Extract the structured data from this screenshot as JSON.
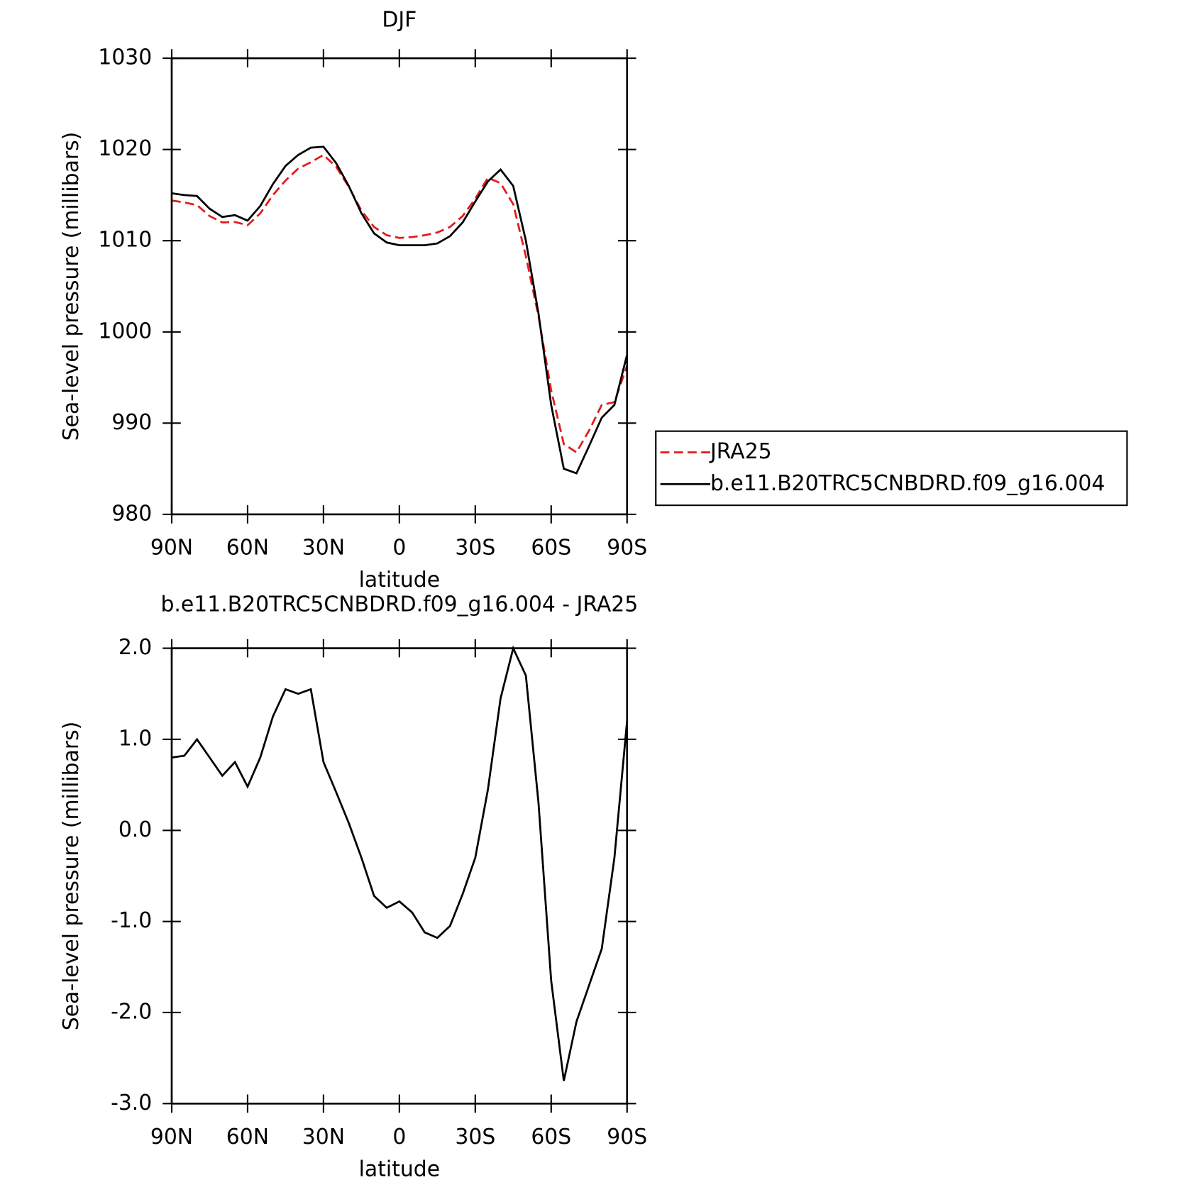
{
  "chart_data": [
    {
      "type": "line",
      "title": "DJF",
      "xlabel": "latitude",
      "ylabel": "Sea-level pressure (millibars)",
      "x": [
        90,
        85,
        80,
        75,
        70,
        65,
        60,
        55,
        50,
        45,
        40,
        35,
        30,
        25,
        20,
        15,
        10,
        5,
        0,
        -5,
        -10,
        -15,
        -20,
        -25,
        -30,
        -35,
        -40,
        -45,
        -50,
        -55,
        -60,
        -65,
        -70,
        -75,
        -80,
        -85,
        -90
      ],
      "xlim": [
        90,
        -90
      ],
      "xticks": [
        {
          "value": 90,
          "label": "90N"
        },
        {
          "value": 60,
          "label": "60N"
        },
        {
          "value": 30,
          "label": "30N"
        },
        0,
        {
          "value": -30,
          "label": "30S"
        },
        {
          "value": -60,
          "label": "60S"
        },
        {
          "value": -90,
          "label": "90S"
        }
      ],
      "ylim": [
        980,
        1030
      ],
      "yticks": [
        980,
        990,
        1000,
        1010,
        1020,
        1030
      ],
      "legend": "right",
      "series": [
        {
          "name": "JRA25",
          "color": "#e41a1c",
          "linestyle": "dashed",
          "values": [
            1014.4,
            1014.2,
            1013.9,
            1012.7,
            1012.0,
            1012.05,
            1011.7,
            1013.0,
            1015.0,
            1016.6,
            1017.9,
            1018.6,
            1019.4,
            1018.1,
            1015.9,
            1013.3,
            1011.5,
            1010.6,
            1010.3,
            1010.4,
            1010.6,
            1010.9,
            1011.5,
            1012.7,
            1014.6,
            1016.9,
            1016.3,
            1014.0,
            1008.3,
            1001.7,
            993.6,
            987.7,
            986.8,
            989.2,
            992.0,
            992.3,
            996.3
          ]
        },
        {
          "name": "b.e11.B20TRC5CNBDRD.f09_g16.004",
          "color": "#000000",
          "linestyle": "solid",
          "values": [
            1015.2,
            1015.0,
            1014.9,
            1013.5,
            1012.6,
            1012.8,
            1012.2,
            1013.8,
            1016.2,
            1018.2,
            1019.4,
            1020.2,
            1020.3,
            1018.5,
            1016.0,
            1013.0,
            1010.8,
            1009.8,
            1009.5,
            1009.5,
            1009.5,
            1009.7,
            1010.5,
            1012.0,
            1014.3,
            1016.5,
            1017.8,
            1016.0,
            1010.0,
            1002.0,
            992.0,
            985.0,
            984.5,
            987.5,
            990.6,
            992.0,
            997.5
          ]
        }
      ]
    },
    {
      "type": "line",
      "title": "b.e11.B20TRC5CNBDRD.f09_g16.004 - JRA25",
      "xlabel": "latitude",
      "ylabel": "Sea-level pressure (millibars)",
      "x": [
        90,
        85,
        80,
        75,
        70,
        65,
        60,
        55,
        50,
        45,
        40,
        35,
        30,
        25,
        20,
        15,
        10,
        5,
        0,
        -5,
        -10,
        -15,
        -20,
        -25,
        -30,
        -35,
        -40,
        -45,
        -50,
        -55,
        -60,
        -65,
        -70,
        -75,
        -80,
        -85,
        -90
      ],
      "xlim": [
        90,
        -90
      ],
      "xticks": [
        {
          "value": 90,
          "label": "90N"
        },
        {
          "value": 60,
          "label": "60N"
        },
        {
          "value": 30,
          "label": "30N"
        },
        0,
        {
          "value": -30,
          "label": "30S"
        },
        {
          "value": -60,
          "label": "60S"
        },
        {
          "value": -90,
          "label": "90S"
        }
      ],
      "ylim": [
        -3,
        2
      ],
      "yticks": [
        {
          "value": -3,
          "label": "-3.0"
        },
        {
          "value": -2,
          "label": "-2.0"
        },
        {
          "value": -1,
          "label": "-1.0"
        },
        {
          "value": 0,
          "label": "0.0"
        },
        {
          "value": 1,
          "label": "1.0"
        },
        {
          "value": 2,
          "label": "2.0"
        }
      ],
      "series": [
        {
          "color": "#000000",
          "linestyle": "solid",
          "values": [
            0.8,
            0.82,
            1.0,
            0.8,
            0.6,
            0.75,
            0.48,
            0.8,
            1.25,
            1.55,
            1.5,
            1.55,
            0.75,
            0.42,
            0.08,
            -0.3,
            -0.72,
            -0.85,
            -0.78,
            -0.9,
            -1.12,
            -1.18,
            -1.05,
            -0.7,
            -0.3,
            0.45,
            1.45,
            2.0,
            1.7,
            0.3,
            -1.65,
            -2.75,
            -2.1,
            -1.7,
            -1.3,
            -0.3,
            1.2
          ]
        }
      ]
    }
  ]
}
